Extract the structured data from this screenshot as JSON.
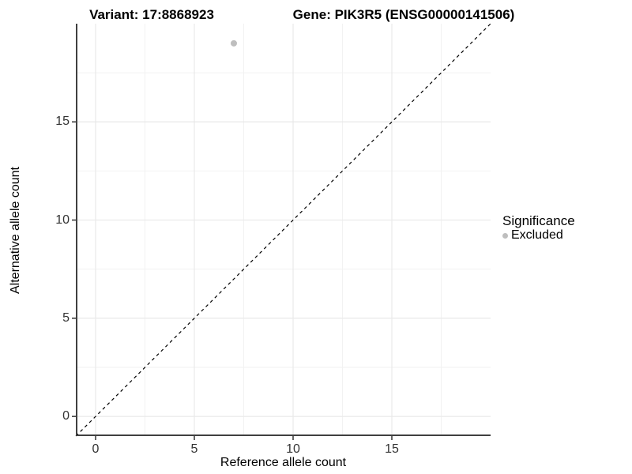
{
  "chart_data": {
    "type": "scatter",
    "title_left": "Variant: 17:8868923",
    "title_right": "Gene: PIK3R5 (ENSG00000141506)",
    "xlabel": "Reference allele count",
    "ylabel": "Alternative allele count",
    "xlim": [
      -1,
      20
    ],
    "ylim": [
      -1,
      20
    ],
    "x_ticks": [
      0,
      5,
      10,
      15
    ],
    "y_ticks": [
      0,
      5,
      10,
      15
    ],
    "x_minor_ticks": [
      2.5,
      7.5,
      12.5,
      17.5
    ],
    "y_minor_ticks": [
      2.5,
      7.5,
      12.5,
      17.5
    ],
    "grid": "major+minor",
    "points": [
      {
        "x": 7,
        "y": 19,
        "significance": "Excluded"
      }
    ],
    "identity_line": {
      "style": "dashed",
      "color": "#000000",
      "from": -1,
      "to": 20
    },
    "legend": {
      "title": "Significance",
      "position": "right",
      "entries": [
        {
          "label": "Excluded",
          "color": "#bebebe",
          "marker": "circle"
        }
      ]
    },
    "colors": {
      "point": "#bebebe",
      "grid_major": "#e9e9e9",
      "grid_minor": "#f2f2f2",
      "axis_line": "#3f3f3f",
      "tick_mark": "#333333",
      "tick_label": "#333333",
      "background": "#ffffff"
    }
  }
}
